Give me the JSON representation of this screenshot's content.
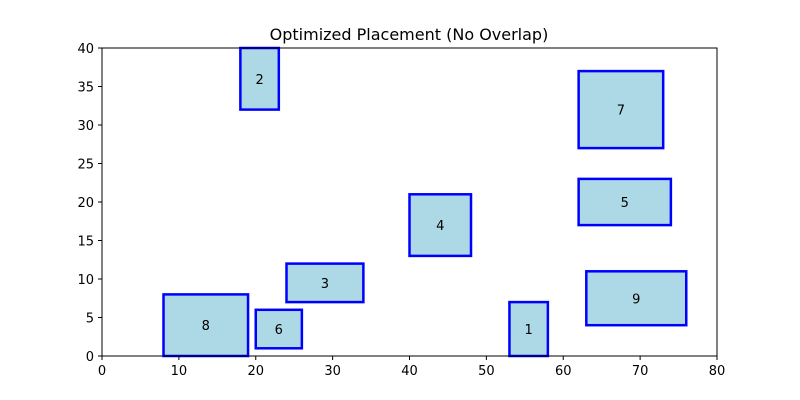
{
  "chart_data": {
    "type": "rectangles",
    "title": "Optimized Placement (No Overlap)",
    "xlabel": "",
    "ylabel": "",
    "xlim": [
      0,
      80
    ],
    "ylim": [
      0,
      40
    ],
    "xticks": [
      0,
      10,
      20,
      30,
      40,
      50,
      60,
      70,
      80
    ],
    "yticks": [
      0,
      5,
      10,
      15,
      20,
      25,
      30,
      35,
      40
    ],
    "grid": false,
    "fill_color": "#add8e6",
    "edge_color": "#0000ff",
    "rectangles": [
      {
        "label": "1",
        "x": 53,
        "y": 0,
        "width": 5,
        "height": 7
      },
      {
        "label": "2",
        "x": 18,
        "y": 32,
        "width": 5,
        "height": 8
      },
      {
        "label": "3",
        "x": 24,
        "y": 7,
        "width": 10,
        "height": 5
      },
      {
        "label": "4",
        "x": 40,
        "y": 13,
        "width": 8,
        "height": 8
      },
      {
        "label": "5",
        "x": 62,
        "y": 17,
        "width": 12,
        "height": 6
      },
      {
        "label": "6",
        "x": 20,
        "y": 1,
        "width": 6,
        "height": 5
      },
      {
        "label": "7",
        "x": 62,
        "y": 27,
        "width": 11,
        "height": 10
      },
      {
        "label": "8",
        "x": 8,
        "y": 0,
        "width": 11,
        "height": 8
      },
      {
        "label": "9",
        "x": 63,
        "y": 4,
        "width": 13,
        "height": 7
      }
    ]
  }
}
